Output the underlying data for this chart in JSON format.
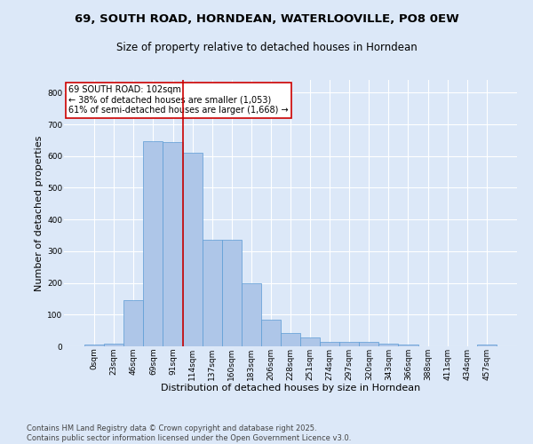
{
  "title_line1": "69, SOUTH ROAD, HORNDEAN, WATERLOOVILLE, PO8 0EW",
  "title_line2": "Size of property relative to detached houses in Horndean",
  "xlabel": "Distribution of detached houses by size in Horndean",
  "ylabel": "Number of detached properties",
  "bar_labels": [
    "0sqm",
    "23sqm",
    "46sqm",
    "69sqm",
    "91sqm",
    "114sqm",
    "137sqm",
    "160sqm",
    "183sqm",
    "206sqm",
    "228sqm",
    "251sqm",
    "274sqm",
    "297sqm",
    "320sqm",
    "343sqm",
    "366sqm",
    "388sqm",
    "411sqm",
    "434sqm",
    "457sqm"
  ],
  "bar_heights": [
    5,
    8,
    145,
    648,
    643,
    610,
    335,
    335,
    198,
    85,
    43,
    27,
    13,
    13,
    13,
    8,
    5,
    0,
    0,
    0,
    5
  ],
  "bar_color": "#aec6e8",
  "bar_edge_color": "#5b9bd5",
  "vline_x": 4.5,
  "vline_color": "#cc0000",
  "annotation_text": "69 SOUTH ROAD: 102sqm\n← 38% of detached houses are smaller (1,053)\n61% of semi-detached houses are larger (1,668) →",
  "annotation_box_color": "#ffffff",
  "annotation_box_edge": "#cc0000",
  "ylim": [
    0,
    840
  ],
  "yticks": [
    0,
    100,
    200,
    300,
    400,
    500,
    600,
    700,
    800
  ],
  "footnote": "Contains HM Land Registry data © Crown copyright and database right 2025.\nContains public sector information licensed under the Open Government Licence v3.0.",
  "bg_color": "#dce8f8",
  "plot_bg_color": "#dce8f8",
  "grid_color": "#ffffff",
  "title_fontsize": 9.5,
  "subtitle_fontsize": 8.5,
  "axis_label_fontsize": 8,
  "tick_fontsize": 6.5,
  "footnote_fontsize": 6,
  "ann_fontsize": 7
}
